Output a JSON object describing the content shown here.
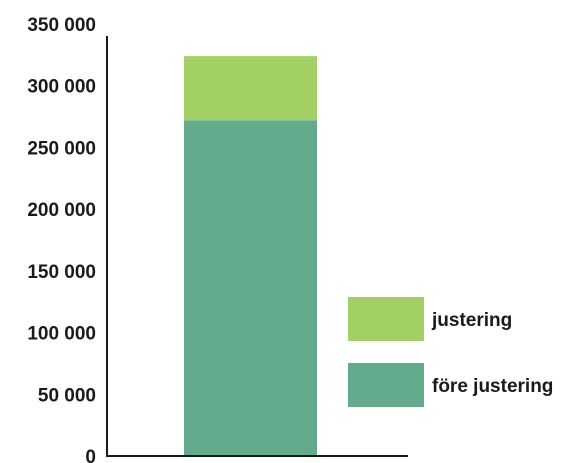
{
  "chart_data": {
    "type": "bar",
    "stacked": true,
    "categories": [
      ""
    ],
    "series": [
      {
        "name": "före justering",
        "values": [
          272000
        ],
        "color": "#64ab8e"
      },
      {
        "name": "justering",
        "values": [
          52000
        ],
        "color": "#a3d065"
      }
    ],
    "yticks": [
      "0",
      "50 000",
      "100 000",
      "150 000",
      "200 000",
      "250 000",
      "300 000",
      "350 000"
    ],
    "ylim": [
      0,
      350000
    ],
    "grid": false,
    "legend_position": "right",
    "axis_color": "#1a1a1a"
  }
}
